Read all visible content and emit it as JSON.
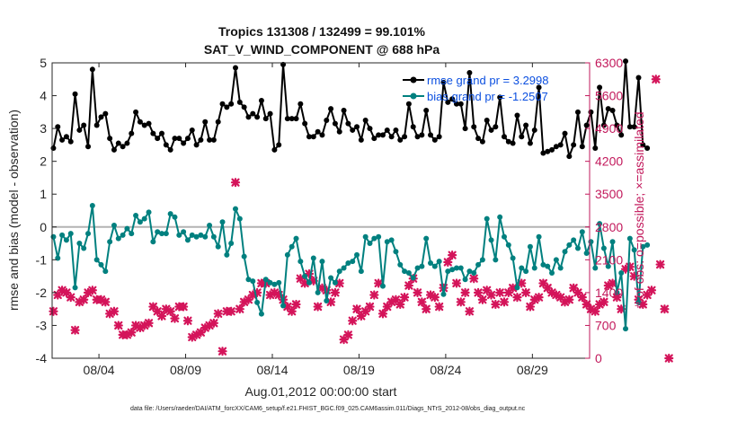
{
  "chart_data": {
    "type": "line",
    "title": "Tropics 131308 / 132499 = 99.101%",
    "subtitle": "SAT_V_WIND_COMPONENT @ 688 hPa",
    "xlabel": "Aug.01,2012 00:00:00 start",
    "ylabel": "rmse and bias (model - observation)",
    "ylabel_right": "# of obs: o=possible; ×=assimilated",
    "footer": "data file: /Users/raeder/DAI/ATM_forcXX/CAM6_setup/f.e21.FHIST_BGC.f09_025.CAM6assim.011/Diags_NTrS_2012-08/obs_diag_output.nc",
    "x_unit": "days since Aug.01,2012 00:00",
    "xlim": [
      0.3,
      31.3
    ],
    "ylim": [
      -4,
      5
    ],
    "ylim_right": [
      0,
      6300
    ],
    "x_ticks": [
      3,
      8,
      13,
      18,
      23,
      28
    ],
    "x_tick_labels": [
      "08/04",
      "08/09",
      "08/14",
      "08/19",
      "08/24",
      "08/29"
    ],
    "y_ticks": [
      -4,
      -3,
      -2,
      -1,
      0,
      1,
      2,
      3,
      4,
      5
    ],
    "y_ticks_right": [
      0,
      700,
      1400,
      2100,
      2800,
      3500,
      4200,
      4900,
      5600,
      6300
    ],
    "zero_line": 0,
    "legend": {
      "position": "top-right",
      "rmse": "rmse grand pr = 3.2998",
      "bias": "bias grand pr = -1.2507"
    },
    "colors": {
      "rmse": "#000000",
      "bias": "#00807f",
      "obs": "#d4145a",
      "zero": "#b3b3b3",
      "right_axis": "#c2185b"
    },
    "series": [
      {
        "name": "rmse",
        "axis": "left",
        "values": [
          2.4,
          3.05,
          2.65,
          2.75,
          2.6,
          4.05,
          2.95,
          3.1,
          2.45,
          4.8,
          3.1,
          3.35,
          3.45,
          2.7,
          2.35,
          2.55,
          2.45,
          2.55,
          2.85,
          3.5,
          3.2,
          3.1,
          3.15,
          2.85,
          2.7,
          2.85,
          2.5,
          2.35,
          2.7,
          2.7,
          2.55,
          2.7,
          2.95,
          2.5,
          2.65,
          3.2,
          2.65,
          2.65,
          3.2,
          3.75,
          3.65,
          3.75,
          4.85,
          3.8,
          3.65,
          3.35,
          3.45,
          3.35,
          3.85,
          3.3,
          3.45,
          2.35,
          2.5,
          4.95,
          3.3,
          3.3,
          3.3,
          3.75,
          3.15,
          2.75,
          2.75,
          2.9,
          2.8,
          3.25,
          3.6,
          3.15,
          2.9,
          3.55,
          3.15,
          2.95,
          3.05,
          2.65,
          3.25,
          3.0,
          2.7,
          2.8,
          2.8,
          2.95,
          2.75,
          2.95,
          2.65,
          2.75,
          3.75,
          3.05,
          2.75,
          2.8,
          3.55,
          2.8,
          2.65,
          2.75,
          4.4,
          3.8,
          3.9,
          3.75,
          3.75,
          3.0,
          4.7,
          3.05,
          2.7,
          2.6,
          3.25,
          2.95,
          3.05,
          3.95,
          2.75,
          2.6,
          2.55,
          3.4,
          2.75,
          3.1,
          2.55,
          2.95,
          4.25,
          2.25,
          2.3,
          2.35,
          2.45,
          2.5,
          2.85,
          2.15,
          2.5,
          3.5,
          2.45,
          3.1,
          3.5,
          2.4,
          4.25,
          3.1,
          3.6,
          3.55,
          3.1,
          2.8,
          5.05,
          3.05,
          3.05,
          4.55,
          2.5,
          2.4
        ],
        "marker": "circle-filled"
      },
      {
        "name": "bias",
        "axis": "left",
        "values": [
          -0.3,
          -0.95,
          -0.25,
          -0.4,
          -0.2,
          -1.85,
          -0.5,
          -0.65,
          -0.2,
          0.65,
          -1.0,
          -1.15,
          -1.35,
          -0.45,
          0.05,
          -0.35,
          -0.25,
          -0.05,
          -0.2,
          0.35,
          0.15,
          0.25,
          0.45,
          -0.45,
          -0.15,
          -0.2,
          -0.2,
          0.4,
          0.3,
          -0.25,
          -0.15,
          -0.4,
          -0.25,
          -0.3,
          -0.25,
          -0.3,
          0.05,
          -0.3,
          -0.6,
          0.15,
          -0.85,
          -0.5,
          0.55,
          0.25,
          -0.9,
          -1.6,
          -1.65,
          -2.3,
          -2.65,
          -1.6,
          -1.7,
          -1.75,
          -1.7,
          -2.4,
          -0.85,
          -0.6,
          -0.35,
          -1.05,
          -1.5,
          -1.7,
          -0.95,
          -2.0,
          -1.05,
          -2.25,
          -1.55,
          -1.7,
          -1.35,
          -1.25,
          -1.1,
          -1.05,
          -0.85,
          -1.35,
          -0.3,
          -0.5,
          -0.35,
          -0.3,
          -1.8,
          -0.45,
          -0.4,
          -0.75,
          -1.15,
          -1.35,
          -1.4,
          -1.55,
          -1.25,
          -1.2,
          -0.35,
          -1.1,
          -1.2,
          -1.05,
          -2.05,
          -1.35,
          -1.3,
          -1.25,
          -1.25,
          -1.6,
          -1.35,
          -1.4,
          -1.15,
          -1.0,
          0.25,
          -0.4,
          -1.0,
          0.3,
          -0.3,
          -0.55,
          -0.95,
          -1.85,
          -1.25,
          -1.35,
          -0.6,
          -1.25,
          -0.3,
          -1.15,
          -1.2,
          -1.4,
          -1.0,
          -1.25,
          -0.75,
          -0.55,
          -0.4,
          -0.65,
          -0.15,
          -0.8,
          -0.45,
          -1.25,
          0.1,
          -0.65,
          -1.2,
          -0.45,
          -2.0,
          -1.4,
          -3.1,
          -0.35,
          -0.7,
          -2.3,
          -0.6,
          -0.55
        ],
        "marker": "circle-filled"
      },
      {
        "name": "obs",
        "axis": "right",
        "marker": "x",
        "values": [
          1000,
          1350,
          1450,
          1400,
          1300,
          600,
          1200,
          1250,
          1400,
          1450,
          1250,
          1250,
          1200,
          950,
          1000,
          700,
          500,
          500,
          550,
          700,
          650,
          700,
          750,
          1100,
          1000,
          900,
          1050,
          1000,
          850,
          1100,
          1100,
          800,
          450,
          500,
          550,
          650,
          700,
          750,
          950,
          150,
          1000,
          1000,
          3750,
          1050,
          1200,
          1250,
          1350,
          1400,
          1600,
          1600,
          1350,
          1400,
          1350,
          1250,
          1100,
          1000,
          1150,
          1700,
          1600,
          1800,
          1650,
          1100,
          1500,
          1450,
          1200,
          1400,
          1600,
          400,
          500,
          800,
          1050,
          900,
          1000,
          1100,
          1350,
          1600,
          950,
          1100,
          1200,
          1250,
          1150,
          1300,
          1550,
          1700,
          1400,
          1200,
          1050,
          1350,
          1300,
          1100,
          1500,
          2050,
          2200,
          1600,
          1200,
          1400,
          1000,
          1700,
          1400,
          1250,
          1450,
          1350,
          1150,
          1400,
          1200,
          1400,
          1500,
          1300,
          1600,
          1400,
          1100,
          1250,
          1300,
          1600,
          1500,
          1400,
          1350,
          1300,
          1200,
          1250,
          1500,
          1400,
          1300,
          1150,
          1050,
          1000,
          1150,
          1200,
          1550,
          1600,
          1300,
          1050,
          1900,
          1950,
          1750,
          1250,
          1150,
          1350,
          1450,
          5950,
          2000,
          1050,
          0
        ]
      }
    ]
  }
}
